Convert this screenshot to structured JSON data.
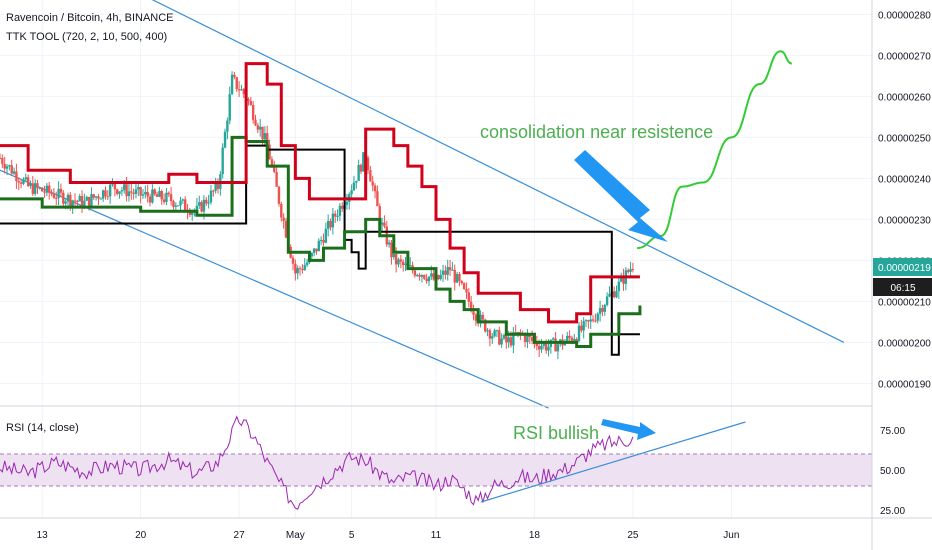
{
  "colors": {
    "background": "#ffffff",
    "grid": "#f0f3fa",
    "axis_text": "#131722",
    "bull_candle": "#26a69a",
    "bear_candle": "#ef5350",
    "red_line": "#d0021b",
    "green_line": "#1b6e1b",
    "black_line": "#000000",
    "channel": "#3a8fd9",
    "annotation_text": "#4caf50",
    "arrow": "#2196f3",
    "forecast": "#33cc33",
    "rsi_line": "#9c27b0",
    "rsi_band": "#ede1f2",
    "price_tag": "#26a69a",
    "time_tag": "#1e1e1e"
  },
  "header": {
    "symbol_line": "Ravencoin / Bitcoin, 4h, BINANCE",
    "indicator_line": "TTK TOOL (720, 2, 10, 500, 400)"
  },
  "rsi_header": "RSI (14, close)",
  "annotations": {
    "consolidation": "consolidation near resistence",
    "rsi": "RSI bullish"
  },
  "price_tag": {
    "value": "0.00000219",
    "countdown": "06:15"
  },
  "chart_data": {
    "type": "candlestick",
    "price_axis": {
      "ticks": [
        "0.00000280",
        "0.00000270",
        "0.00000260",
        "0.00000250",
        "0.00000240",
        "0.00000230",
        "0.00000220",
        "0.00000210",
        "0.00000200",
        "0.00000190"
      ],
      "range": [
        1.845e-06,
        2.835e-06
      ]
    },
    "rsi_axis": {
      "ticks": [
        "75.00",
        "50.00",
        "25.00"
      ],
      "range": [
        20,
        90
      ],
      "bands": [
        40,
        60
      ]
    },
    "x_axis": {
      "range": [
        0,
        62
      ],
      "ticks": [
        {
          "label": "13",
          "day": 3
        },
        {
          "label": "20",
          "day": 10
        },
        {
          "label": "27",
          "day": 17
        },
        {
          "label": "May",
          "day": 21
        },
        {
          "label": "5",
          "day": 25
        },
        {
          "label": "11",
          "day": 31
        },
        {
          "label": "18",
          "day": 38
        },
        {
          "label": "25",
          "day": 45
        },
        {
          "label": "Jun",
          "day": 52
        }
      ]
    },
    "price_anchors": [
      [
        0,
        2.45e-06
      ],
      [
        2,
        2.38e-06
      ],
      [
        4,
        2.36e-06
      ],
      [
        6,
        2.34e-06
      ],
      [
        8,
        2.38e-06
      ],
      [
        10,
        2.36e-06
      ],
      [
        12,
        2.35e-06
      ],
      [
        14,
        2.32e-06
      ],
      [
        15.5,
        2.38e-06
      ],
      [
        16.5,
        2.64e-06
      ],
      [
        17.5,
        2.6e-06
      ],
      [
        19,
        2.48e-06
      ],
      [
        20,
        2.32e-06
      ],
      [
        21,
        2.17e-06
      ],
      [
        22,
        2.2e-06
      ],
      [
        23,
        2.26e-06
      ],
      [
        24,
        2.32e-06
      ],
      [
        25,
        2.38e-06
      ],
      [
        26,
        2.46e-06
      ],
      [
        27,
        2.3e-06
      ],
      [
        28,
        2.2e-06
      ],
      [
        29,
        2.18e-06
      ],
      [
        30,
        2.17e-06
      ],
      [
        31,
        2.15e-06
      ],
      [
        32,
        2.18e-06
      ],
      [
        33,
        2.12e-06
      ],
      [
        34,
        2.06e-06
      ],
      [
        35,
        2.02e-06
      ],
      [
        36,
        2e-06
      ],
      [
        37,
        2.02e-06
      ],
      [
        38,
        2e-06
      ],
      [
        39,
        1.99e-06
      ],
      [
        40,
        2e-06
      ],
      [
        41,
        2.02e-06
      ],
      [
        42,
        2.05e-06
      ],
      [
        43,
        2.1e-06
      ],
      [
        44,
        2.14e-06
      ],
      [
        45,
        2.19e-06
      ]
    ],
    "red_line_steps": [
      [
        0,
        2.48e-06
      ],
      [
        2,
        2.42e-06
      ],
      [
        5,
        2.39e-06
      ],
      [
        12,
        2.41e-06
      ],
      [
        14,
        2.39e-06
      ],
      [
        17.5,
        2.68e-06
      ],
      [
        19,
        2.63e-06
      ],
      [
        20,
        2.48e-06
      ],
      [
        21,
        2.4e-06
      ],
      [
        22,
        2.35e-06
      ],
      [
        26,
        2.52e-06
      ],
      [
        28,
        2.48e-06
      ],
      [
        29,
        2.43e-06
      ],
      [
        30,
        2.38e-06
      ],
      [
        31,
        2.3e-06
      ],
      [
        32,
        2.23e-06
      ],
      [
        33,
        2.17e-06
      ],
      [
        34,
        2.12e-06
      ],
      [
        37,
        2.08e-06
      ],
      [
        39,
        2.05e-06
      ],
      [
        41,
        2.07e-06
      ],
      [
        42,
        2.16e-06
      ],
      [
        45.5,
        2.16e-06
      ]
    ],
    "green_line_steps": [
      [
        0,
        2.35e-06
      ],
      [
        3,
        2.33e-06
      ],
      [
        10,
        2.32e-06
      ],
      [
        14,
        2.31e-06
      ],
      [
        16.5,
        2.5e-06
      ],
      [
        17.5,
        2.49e-06
      ],
      [
        19,
        2.43e-06
      ],
      [
        20.5,
        2.22e-06
      ],
      [
        22,
        2.2e-06
      ],
      [
        23,
        2.23e-06
      ],
      [
        24.5,
        2.27e-06
      ],
      [
        26,
        2.3e-06
      ],
      [
        27,
        2.26e-06
      ],
      [
        28,
        2.22e-06
      ],
      [
        29,
        2.18e-06
      ],
      [
        31,
        2.13e-06
      ],
      [
        32,
        2.1e-06
      ],
      [
        33,
        2.08e-06
      ],
      [
        34,
        2.05e-06
      ],
      [
        36,
        2.02e-06
      ],
      [
        38,
        2e-06
      ],
      [
        41,
        1.99e-06
      ],
      [
        42,
        2.02e-06
      ],
      [
        44,
        2.07e-06
      ],
      [
        45.5,
        2.09e-06
      ]
    ],
    "black_line_steps": [
      [
        0,
        2.29e-06
      ],
      [
        16.5,
        2.29e-06
      ],
      [
        17.5,
        2.48e-06
      ],
      [
        19,
        2.47e-06
      ],
      [
        20,
        2.47e-06
      ],
      [
        24.5,
        2.25e-06
      ],
      [
        25,
        2.22e-06
      ],
      [
        25.5,
        2.18e-06
      ],
      [
        26,
        2.27e-06
      ],
      [
        27,
        2.27e-06
      ],
      [
        43.5,
        1.97e-06
      ],
      [
        44,
        2.02e-06
      ],
      [
        45.5,
        2.02e-06
      ]
    ],
    "channel_upper": [
      [
        10,
        2.85e-06
      ],
      [
        60,
        2e-06
      ]
    ],
    "channel_lower": [
      [
        0,
        2.42e-06
      ],
      [
        39,
        1.84e-06
      ]
    ],
    "forecast_path": [
      [
        45.3,
        2.23e-06
      ],
      [
        47,
        2.26e-06
      ],
      [
        48.5,
        2.38e-06
      ],
      [
        50,
        2.39e-06
      ],
      [
        52,
        2.5e-06
      ],
      [
        54,
        2.63e-06
      ],
      [
        55.5,
        2.71e-06
      ],
      [
        56.3,
        2.68e-06
      ]
    ],
    "rsi_anchors": [
      [
        0,
        52
      ],
      [
        2,
        48
      ],
      [
        4,
        55
      ],
      [
        6,
        49
      ],
      [
        8,
        53
      ],
      [
        10,
        50
      ],
      [
        12,
        56
      ],
      [
        14,
        48
      ],
      [
        15.5,
        55
      ],
      [
        17,
        82
      ],
      [
        18,
        72
      ],
      [
        19,
        55
      ],
      [
        20,
        40
      ],
      [
        21,
        28
      ],
      [
        22,
        38
      ],
      [
        23,
        44
      ],
      [
        24,
        52
      ],
      [
        25,
        58
      ],
      [
        26,
        56
      ],
      [
        27,
        48
      ],
      [
        28,
        42
      ],
      [
        29,
        46
      ],
      [
        30,
        44
      ],
      [
        31,
        40
      ],
      [
        32,
        45
      ],
      [
        33,
        38
      ],
      [
        34,
        30
      ],
      [
        35,
        40
      ],
      [
        36,
        42
      ],
      [
        37,
        46
      ],
      [
        38,
        44
      ],
      [
        39,
        48
      ],
      [
        40,
        50
      ],
      [
        41,
        55
      ],
      [
        42,
        62
      ],
      [
        43,
        66
      ],
      [
        44,
        68
      ],
      [
        45,
        70
      ]
    ],
    "rsi_trendline": [
      [
        34.2,
        30
      ],
      [
        53,
        80
      ]
    ]
  }
}
